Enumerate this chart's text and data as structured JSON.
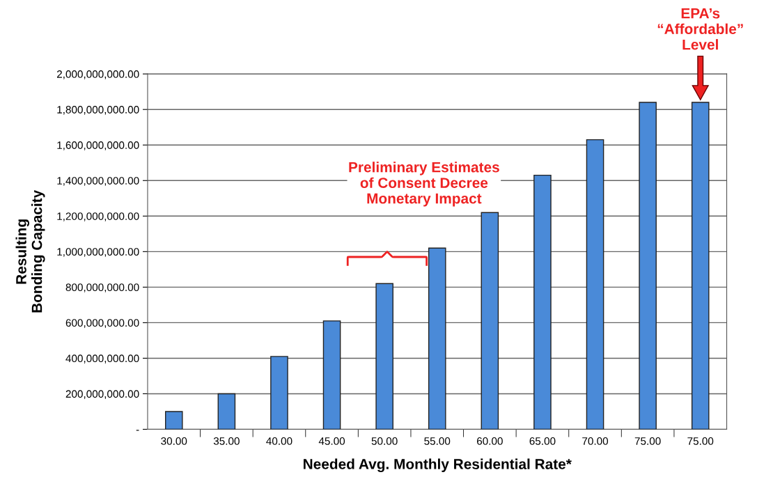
{
  "chart_data": {
    "type": "bar",
    "xlabel": "Needed Avg. Monthly Residential Rate*",
    "ylabel": "Resulting\nBonding Capacity",
    "categories": [
      "30.00",
      "35.00",
      "40.00",
      "45.00",
      "50.00",
      "55.00",
      "60.00",
      "65.00",
      "70.00",
      "75.00",
      "75.00"
    ],
    "values": [
      100000000,
      200000000,
      410000000,
      610000000,
      820000000,
      1020000000,
      1220000000,
      1430000000,
      1630000000,
      1840000000,
      1840000000
    ],
    "color": "#4a8ad8",
    "ylim": [
      0,
      2000000000
    ],
    "yticks": [
      {
        "value": 0,
        "label": "-"
      },
      {
        "value": 200000000,
        "label": "200,000,000.00"
      },
      {
        "value": 400000000,
        "label": "400,000,000.00"
      },
      {
        "value": 600000000,
        "label": "600,000,000.00"
      },
      {
        "value": 800000000,
        "label": "800,000,000.00"
      },
      {
        "value": 1000000000,
        "label": "1,000,000,000.00"
      },
      {
        "value": 1200000000,
        "label": "1,200,000,000.00"
      },
      {
        "value": 1400000000,
        "label": "1,400,000,000.00"
      },
      {
        "value": 1600000000,
        "label": "1,600,000,000.00"
      },
      {
        "value": 1800000000,
        "label": "1,800,000,000.00"
      },
      {
        "value": 2000000000,
        "label": "2,000,000,000.00"
      }
    ],
    "grid": "y",
    "annotations": [
      "Preliminary Estimates\nof Consent Decree\nMonetary Impact",
      "EPA’s\n“Affordable”\nLevel"
    ]
  }
}
